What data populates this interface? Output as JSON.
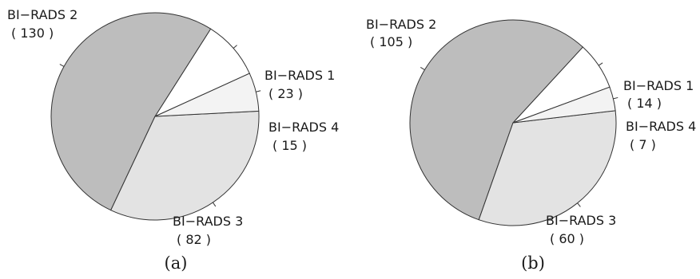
{
  "chart_data": [
    {
      "type": "pie",
      "caption": "(a)",
      "slices": [
        {
          "label": "BI−RADS 1",
          "count_text": "( 23 )",
          "value": 23,
          "color": "#ffffff"
        },
        {
          "label": "BI−RADS 2",
          "count_text": "( 130 )",
          "value": 130,
          "color": "#bdbdbd"
        },
        {
          "label": "BI−RADS 3",
          "count_text": "( 82 )",
          "value": 82,
          "color": "#e3e3e3"
        },
        {
          "label": "BI−RADS 4",
          "count_text": "( 15 )",
          "value": 15,
          "color": "#f3f3f3"
        }
      ]
    },
    {
      "type": "pie",
      "caption": "(b)",
      "slices": [
        {
          "label": "BI−RADS 1",
          "count_text": "( 14 )",
          "value": 14,
          "color": "#ffffff"
        },
        {
          "label": "BI−RADS 2",
          "count_text": "( 105 )",
          "value": 105,
          "color": "#bdbdbd"
        },
        {
          "label": "BI−RADS 3",
          "count_text": "( 60 )",
          "value": 60,
          "color": "#e3e3e3"
        },
        {
          "label": "BI−RADS 4",
          "count_text": "( 7 )",
          "value": 7,
          "color": "#f3f3f3"
        }
      ]
    }
  ],
  "stroke_color": "#333333"
}
